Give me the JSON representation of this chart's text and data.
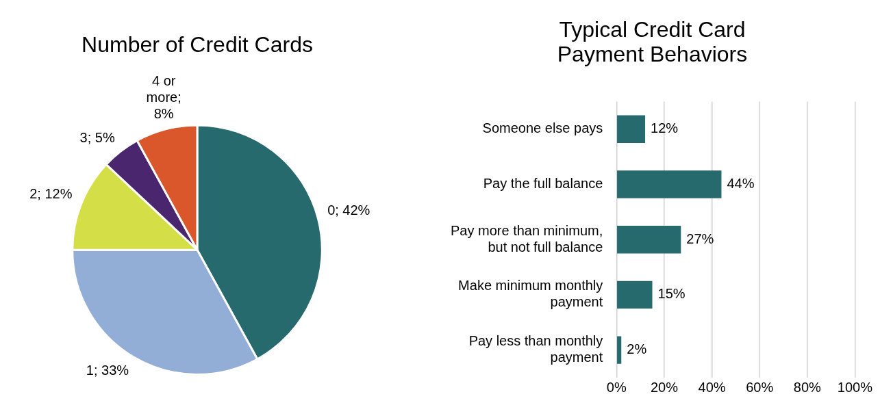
{
  "chart_data": [
    {
      "type": "pie",
      "title": "Number of Credit Cards",
      "categories": [
        "0",
        "1",
        "2",
        "3",
        "4 or more"
      ],
      "values": [
        42,
        33,
        12,
        5,
        8
      ],
      "colors": [
        "#276a6e",
        "#92aed6",
        "#d4df48",
        "#4a266e",
        "#d9572a"
      ],
      "value_labels": [
        "; 42%",
        "; 33%",
        "; 12%",
        "; 5%",
        "; 8%"
      ],
      "legend": false
    },
    {
      "type": "bar",
      "orientation": "horizontal",
      "title": "Typical Credit Card Payment Behaviors",
      "categories": [
        "Someone else pays",
        "Pay the full balance",
        "Pay more than minimum, but not full balance",
        "Make minimum monthly payment",
        "Pay less than monthly payment"
      ],
      "series": [
        {
          "color": "#276a6e",
          "values": [
            12,
            44,
            27,
            15,
            2
          ],
          "value_labels": [
            "12%",
            "44%",
            "27%",
            "15%",
            "2%"
          ]
        }
      ],
      "xlim": [
        0,
        100
      ],
      "xticks": [
        {
          "value": 0,
          "label": "0%"
        },
        {
          "value": 20,
          "label": "20%"
        },
        {
          "value": 40,
          "label": "40%"
        },
        {
          "value": 60,
          "label": "60%"
        },
        {
          "value": 80,
          "label": "80%"
        },
        {
          "value": 100,
          "label": "100%"
        }
      ],
      "grid": "x",
      "legend": false
    }
  ]
}
